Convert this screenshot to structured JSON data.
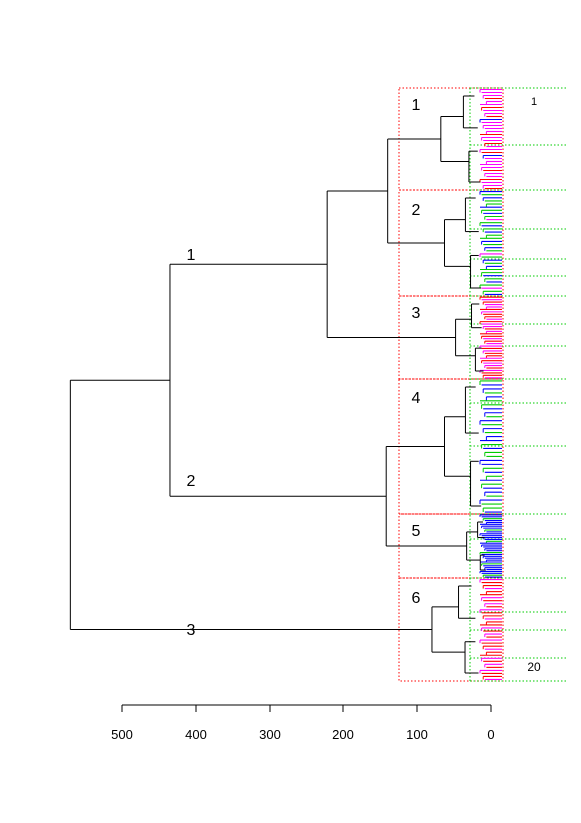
{
  "chart_data": {
    "type": "dendrogram",
    "orientation": "horizontal",
    "title": "",
    "xlabel": "",
    "ylabel": "",
    "axis": {
      "ticks": [
        500,
        400,
        300,
        200,
        100,
        0
      ],
      "tick_labels": [
        "500",
        "400",
        "300",
        "200",
        "100",
        "0"
      ],
      "range": [
        500,
        0
      ],
      "reversed": true
    },
    "top_clusters": [
      {
        "label": "1",
        "merge_height": 435
      },
      {
        "label": "2",
        "merge_height": 435
      },
      {
        "label": "3",
        "merge_height": 570
      }
    ],
    "cut_clusters": [
      {
        "label": "1",
        "color": "#ff00ff",
        "merge_height": 68
      },
      {
        "label": "2",
        "color": "#00cc00",
        "merge_height": 63
      },
      {
        "label": "3",
        "color": "#ff0000",
        "merge_height": 48
      },
      {
        "label": "4",
        "color": "#0000ff",
        "merge_height": 63
      },
      {
        "label": "5",
        "color": "#0000ff",
        "merge_height": 33
      },
      {
        "label": "6",
        "color": "#ff0000",
        "merge_height": 80
      }
    ],
    "merges": [
      {
        "between": [
          "1",
          "2"
        ],
        "height": 140
      },
      {
        "between": [
          "1-2",
          "3"
        ],
        "height": 222
      },
      {
        "between": [
          "4",
          "5"
        ],
        "height": 142
      },
      {
        "between": [
          "1-3",
          "4-5"
        ],
        "height": 435
      },
      {
        "between": [
          "1-5",
          "6"
        ],
        "height": 570
      },
      {
        "between": [
          "6-inner",
          "6-inner"
        ],
        "height": 127
      }
    ],
    "leaf_colors": [
      "#ff00ff",
      "#ff0000",
      "#0000ff",
      "#00cc00"
    ],
    "subgroup_range_labels": [
      "1",
      "20"
    ],
    "box_color": "#ff0000",
    "subgroup_line_color": "#00cc00",
    "grid": false,
    "legend": "none"
  }
}
